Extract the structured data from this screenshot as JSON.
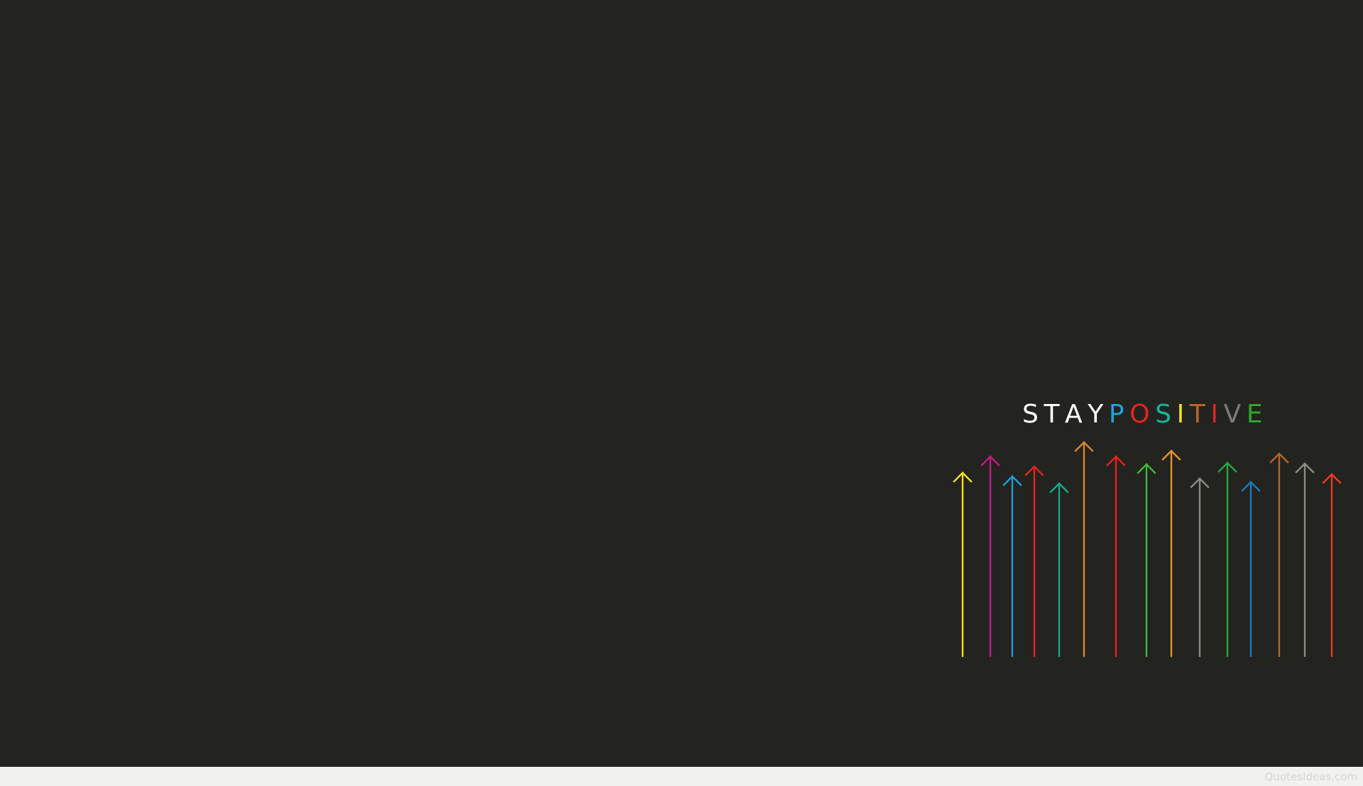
{
  "background_color": "#23231f",
  "footer_color": "#f1f1f0",
  "headline": {
    "text": "STAYPOSITIVE",
    "letters": [
      {
        "char": "S",
        "color": "#ffffff"
      },
      {
        "char": "T",
        "color": "#ffffff"
      },
      {
        "char": "A",
        "color": "#ffffff"
      },
      {
        "char": "Y",
        "color": "#ffffff"
      },
      {
        "char": "P",
        "color": "#1fa3d7"
      },
      {
        "char": "O",
        "color": "#e42321"
      },
      {
        "char": "S",
        "color": "#19b49a"
      },
      {
        "char": "I",
        "color": "#f0e11c"
      },
      {
        "char": "T",
        "color": "#b8642a"
      },
      {
        "char": "I",
        "color": "#e42321"
      },
      {
        "char": "V",
        "color": "#7b7b77"
      },
      {
        "char": "E",
        "color": "#2fa52f"
      }
    ]
  },
  "arrows": [
    {
      "name": "arrow-yellow",
      "color": "#f2e21a"
    },
    {
      "name": "arrow-magenta",
      "color": "#c21b86"
    },
    {
      "name": "arrow-sky-blue",
      "color": "#1e9fd9"
    },
    {
      "name": "arrow-red",
      "color": "#e42321"
    },
    {
      "name": "arrow-teal",
      "color": "#16a98e"
    },
    {
      "name": "arrow-orange",
      "color": "#d8872f"
    },
    {
      "name": "arrow-red-2",
      "color": "#e42321"
    },
    {
      "name": "arrow-green",
      "color": "#3fb83f"
    },
    {
      "name": "arrow-orange-2",
      "color": "#e8932b"
    },
    {
      "name": "arrow-gray",
      "color": "#8a8a86"
    },
    {
      "name": "arrow-green-2",
      "color": "#23a83f"
    },
    {
      "name": "arrow-blue",
      "color": "#1c79c1"
    },
    {
      "name": "arrow-brown",
      "color": "#b8642a"
    },
    {
      "name": "arrow-gray-2",
      "color": "#8a8a86"
    },
    {
      "name": "arrow-red-orange",
      "color": "#eb3b24"
    }
  ],
  "watermark": "QuotesIdeas.com"
}
